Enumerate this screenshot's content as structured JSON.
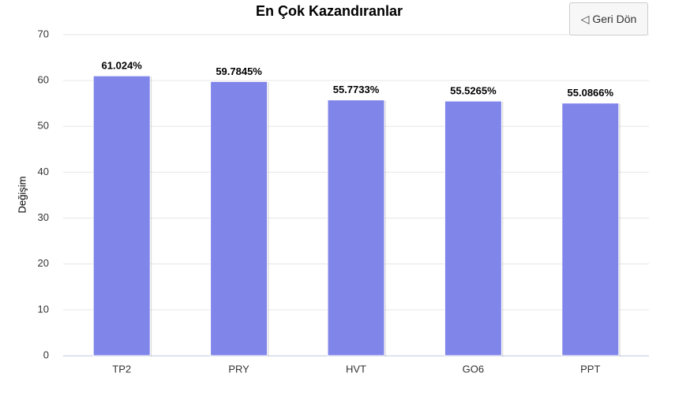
{
  "button": {
    "label": "◁ Geri Dön"
  },
  "chart_data": {
    "type": "bar",
    "title": "En Çok Kazandıranlar",
    "y_label": "Değişim",
    "categories": [
      "TP2",
      "PRY",
      "HVT",
      "GO6",
      "PPT"
    ],
    "values": [
      61.024,
      59.7845,
      55.7733,
      55.5265,
      55.0866
    ],
    "value_labels": [
      "61.024%",
      "59.7845%",
      "55.7733%",
      "55.5265%",
      "55.0866%"
    ],
    "color": "#8085e9",
    "ylim": [
      0,
      70
    ],
    "yticks": [
      0,
      10,
      20,
      30,
      40,
      50,
      60,
      70
    ],
    "grid": true
  }
}
